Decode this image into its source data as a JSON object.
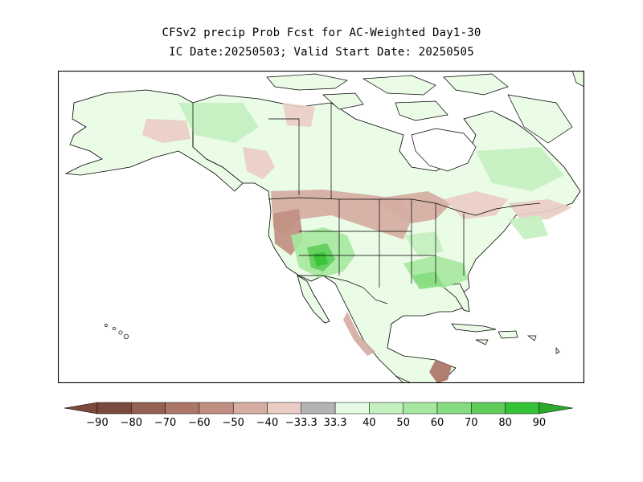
{
  "title": {
    "line1": "CFSv2 precip Prob Fcst for AC-Weighted Day1-30",
    "line2": "IC Date:20250503; Valid Start Date: 20250505"
  },
  "colorbar": {
    "labels": [
      "-90",
      "-80",
      "-70",
      "-60",
      "-50",
      "-40",
      "-33.3",
      "33.3",
      "40",
      "50",
      "60",
      "70",
      "80",
      "90"
    ],
    "colors": [
      "#7a4a3e",
      "#936053",
      "#ab7568",
      "#c08f82",
      "#d5ada2",
      "#eacdc5",
      "#b4b4b4",
      "#e6fae4",
      "#c4f0c0",
      "#a6e8a0",
      "#86dc80",
      "#5fcd5a",
      "#36c236"
    ],
    "low_arrow_color": "#7a4a3e",
    "high_arrow_color": "#2ca82c"
  },
  "map": {
    "region": "North America",
    "ocean_color": "#ffffff",
    "land_default_color": "#eafbe6"
  }
}
